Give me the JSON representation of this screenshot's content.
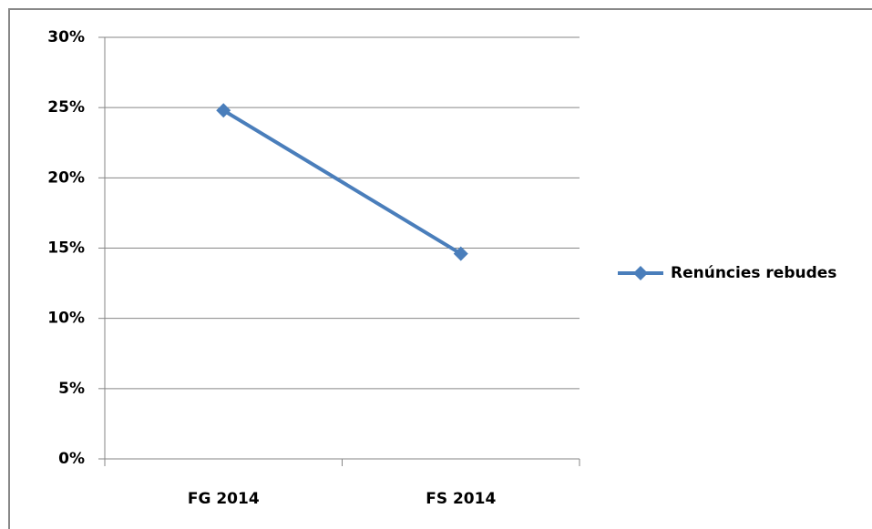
{
  "chart_data": {
    "type": "line",
    "categories": [
      "FG 2014",
      "FS 2014"
    ],
    "series": [
      {
        "name": "Renúncies rebudes",
        "color": "#4a7ebb",
        "values": [
          24.8,
          14.6
        ]
      }
    ],
    "ylim": [
      0,
      30
    ],
    "yticks": [
      {
        "value": 0,
        "label": "0%"
      },
      {
        "value": 5,
        "label": "5%"
      },
      {
        "value": 10,
        "label": "10%"
      },
      {
        "value": 15,
        "label": "15%"
      },
      {
        "value": 20,
        "label": "20%"
      },
      {
        "value": 25,
        "label": "25%"
      },
      {
        "value": 30,
        "label": "30%"
      }
    ],
    "grid": true,
    "legend": "right"
  }
}
